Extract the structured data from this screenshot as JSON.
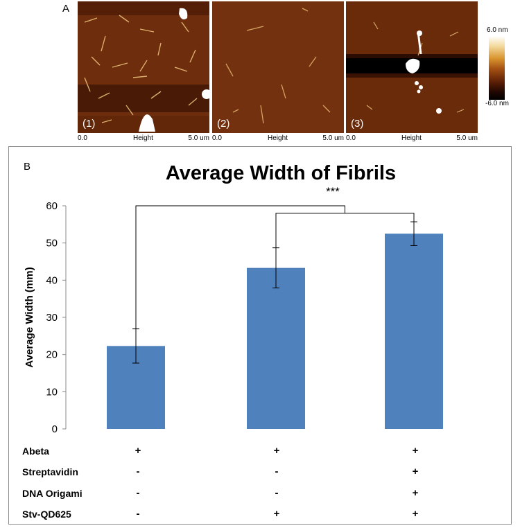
{
  "panel_a": {
    "label": "A",
    "images": [
      {
        "number": "(1)",
        "axis_start": "0.0",
        "axis_title": "Height",
        "axis_end": "5.0 um"
      },
      {
        "number": "(2)",
        "axis_start": "0.0",
        "axis_title": "Height",
        "axis_end": "5.0 um"
      },
      {
        "number": "(3)",
        "axis_start": "0.0",
        "axis_title": "Height",
        "axis_end": "5.0 um"
      }
    ],
    "colorbar": {
      "max_label": "6.0 nm",
      "min_label": "-6.0 nm",
      "colors": [
        "#ffffff",
        "#d9952f",
        "#a24f12",
        "#5c1f06",
        "#000000"
      ]
    }
  },
  "panel_b": {
    "label": "B",
    "significance": "***",
    "conditions": [
      {
        "name": "Abeta",
        "marks": [
          "+",
          "+",
          "+"
        ]
      },
      {
        "name": "Streptavidin",
        "marks": [
          "-",
          "-",
          "+"
        ]
      },
      {
        "name": "DNA Origami",
        "marks": [
          "-",
          "-",
          "+"
        ]
      },
      {
        "name": "Stv-QD625",
        "marks": [
          "-",
          "+",
          "+"
        ]
      }
    ]
  },
  "chart_data": {
    "type": "bar",
    "title": "Average Width of Fibrils",
    "xlabel": "",
    "ylabel": "Average Width (mm)",
    "categories": [
      "Abeta",
      "Abeta + Stv-QD625",
      "Abeta + Streptavidin + DNA Origami + Stv-QD625"
    ],
    "values": [
      22.3,
      43.3,
      52.5
    ],
    "error": [
      4.6,
      5.4,
      3.2
    ],
    "ylim": [
      0,
      60
    ],
    "yticks": [
      0,
      10,
      20,
      30,
      40,
      50,
      60
    ],
    "bar_color": "#4f81bd",
    "grid": false,
    "significance_brackets": [
      {
        "from": 0,
        "to_pair": [
          1,
          2
        ],
        "label": "***"
      }
    ]
  }
}
